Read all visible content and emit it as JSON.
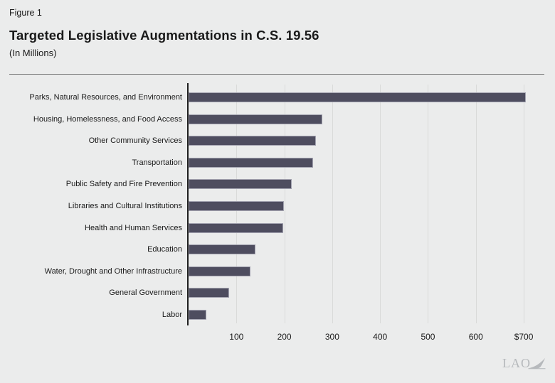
{
  "page": {
    "logo_text": "LAO"
  },
  "colors": {
    "background": "#ebecec",
    "bar_fill": "#4e4d5f",
    "bar_border": "#a3a3b0",
    "gridline": "#d9dad9",
    "axis_line": "#1f1f1f",
    "divider": "#777777",
    "text": "#1a1a1a",
    "logo": "#b6b9bc"
  },
  "chart_data": {
    "type": "bar",
    "orientation": "horizontal",
    "figure_label": "Figure 1",
    "title": "Targeted Legislative Augmentations in C.S. 19.56",
    "subtitle": "(In Millions)",
    "categories": [
      "Parks, Natural Resources, and Environment",
      "Housing, Homelessness, and Food Access",
      "Other Community Services",
      "Transportation",
      "Public Safety and Fire Prevention",
      "Libraries and Cultural Institutions",
      "Health and Human Services",
      "Education",
      "Water, Drought and Other Infrastructure",
      "General Government",
      "Labor"
    ],
    "values": [
      704,
      279,
      266,
      260,
      215,
      199,
      197,
      139,
      130,
      84,
      37
    ],
    "unit": "millions of dollars",
    "xlabel": "",
    "ylabel": "",
    "xlim": [
      0,
      743
    ],
    "xticks": [
      100,
      200,
      300,
      400,
      500,
      600,
      700
    ],
    "xtick_labels": [
      "100",
      "200",
      "300",
      "400",
      "500",
      "600",
      "$700"
    ],
    "grid": "vertical-gridlines-only",
    "legend": false
  }
}
